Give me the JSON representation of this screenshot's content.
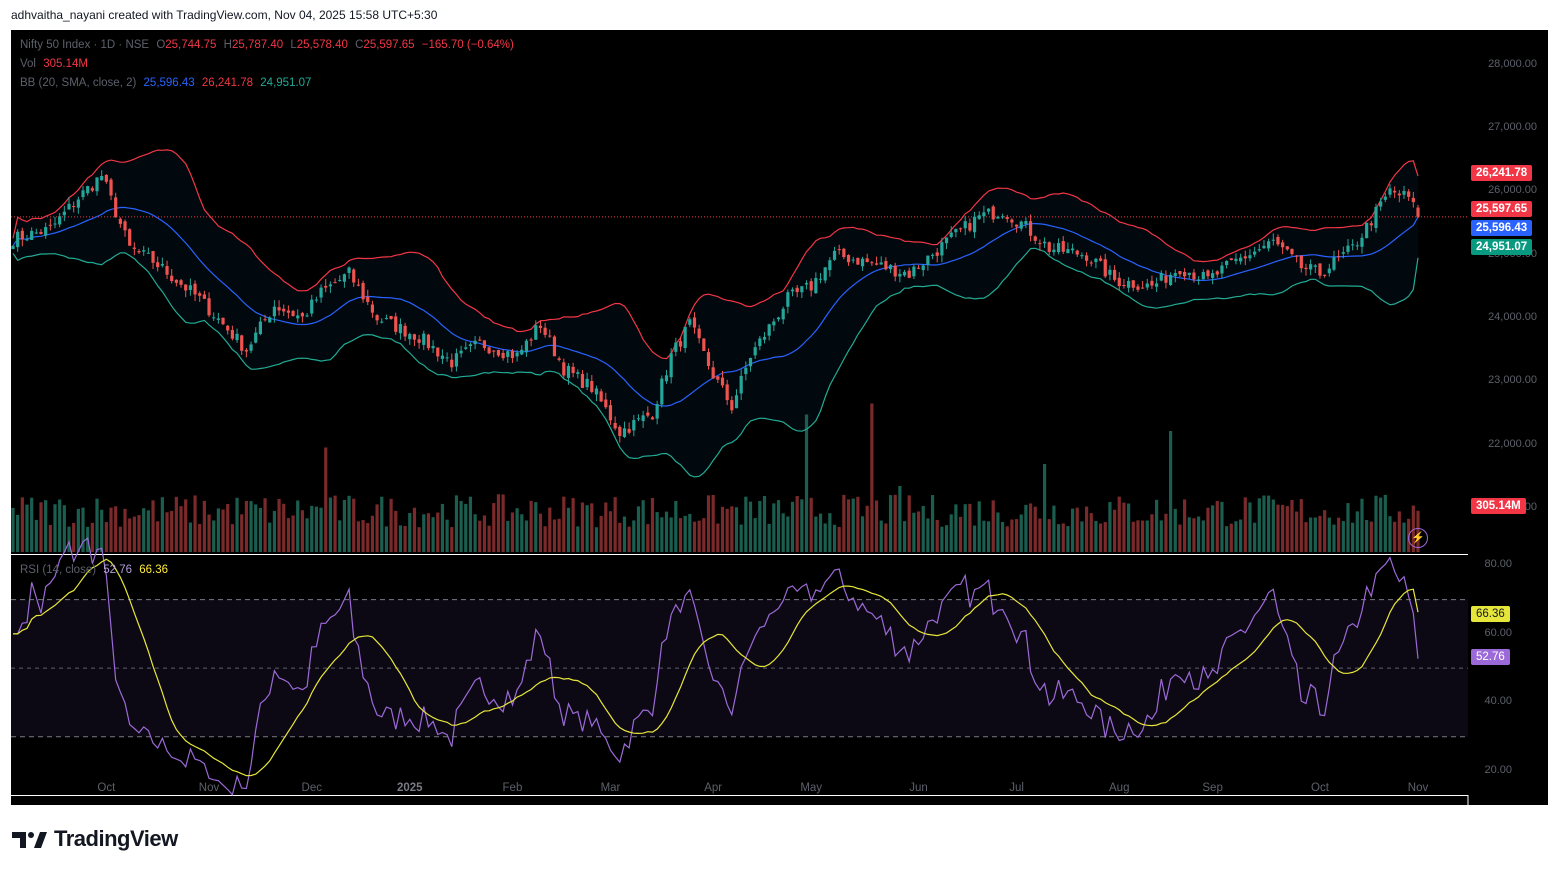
{
  "header": {
    "text": "adhvaitha_nayani created with TradingView.com, Nov 04, 2025 15:58 UTC+5:30"
  },
  "legend": {
    "symbol": "Nifty 50 Index · 1D · NSE",
    "ohlc": {
      "o_label": "O",
      "o": "25,744.75",
      "h_label": "H",
      "h": "25,787.40",
      "l_label": "L",
      "l": "25,578.40",
      "c_label": "C",
      "c": "25,597.65",
      "change": "−165.70 (−0.64%)"
    },
    "vol_label": "Vol",
    "vol": "305.14M",
    "bb_label": "BB (20, SMA, close, 2)",
    "bb_basis": "25,596.43",
    "bb_upper": "26,241.78",
    "bb_lower": "24,951.07",
    "rsi_label": "RSI (14, close)",
    "rsi": "52.76",
    "rsi_ma": "66.36"
  },
  "tags": {
    "upper": "26,241.78",
    "close": "25,597.65",
    "basis": "25,596.43",
    "lower": "24,951.07",
    "vol": "305.14M",
    "rsi_ma": "66.36",
    "rsi": "52.76"
  },
  "colors": {
    "up": "#26a69a",
    "down": "#ef5350",
    "vol_up": "#1b5e4f",
    "vol_down": "#7a2a2a",
    "basis": "#2962ff",
    "upper": "#f23645",
    "lower": "#22ab94",
    "rsi": "#9c6ad8",
    "rsi_ma": "#e6e63a"
  },
  "logo": {
    "text": "TradingView",
    "icon": "tradingview-logo-icon"
  },
  "chart_data": {
    "type": "candlestick",
    "price_axis": {
      "ticks": [
        "28,000.00",
        "27,000.00",
        "26,000.00",
        "25,000.00",
        "24,000.00",
        "23,000.00",
        "22,000.00",
        "21,000.00"
      ],
      "range": [
        20650,
        28550
      ]
    },
    "rsi_axis": {
      "ticks": [
        "80.00",
        "60.00",
        "40.00",
        "20.00"
      ],
      "range": [
        13,
        83
      ],
      "overbought": 70,
      "oversold": 30
    },
    "time_labels": [
      "Oct",
      "Nov",
      "Dec",
      "2025",
      "Feb",
      "Mar",
      "Apr",
      "May",
      "Jun",
      "Jul",
      "Aug",
      "Sep",
      "Oct",
      "Nov"
    ],
    "time_label_idx": [
      20,
      42,
      64,
      85,
      107,
      128,
      150,
      171,
      194,
      215,
      237,
      257,
      280,
      301
    ],
    "bar_count": 302,
    "close_anchors": [
      [
        0,
        25250
      ],
      [
        8,
        25400
      ],
      [
        14,
        25900
      ],
      [
        19,
        26250
      ],
      [
        25,
        25100
      ],
      [
        30,
        24900
      ],
      [
        40,
        24300
      ],
      [
        50,
        23500
      ],
      [
        56,
        24200
      ],
      [
        62,
        24000
      ],
      [
        66,
        24400
      ],
      [
        72,
        24700
      ],
      [
        78,
        24000
      ],
      [
        87,
        23700
      ],
      [
        94,
        23300
      ],
      [
        100,
        23600
      ],
      [
        108,
        23400
      ],
      [
        113,
        23900
      ],
      [
        118,
        23200
      ],
      [
        124,
        22900
      ],
      [
        130,
        22200
      ],
      [
        137,
        22500
      ],
      [
        141,
        23400
      ],
      [
        145,
        23900
      ],
      [
        150,
        23100
      ],
      [
        154,
        22600
      ],
      [
        158,
        23400
      ],
      [
        166,
        24300
      ],
      [
        171,
        24500
      ],
      [
        176,
        25000
      ],
      [
        182,
        24900
      ],
      [
        192,
        24700
      ],
      [
        200,
        25200
      ],
      [
        207,
        25600
      ],
      [
        212,
        25700
      ],
      [
        216,
        25500
      ],
      [
        222,
        25100
      ],
      [
        230,
        25000
      ],
      [
        236,
        24600
      ],
      [
        244,
        24500
      ],
      [
        250,
        24800
      ],
      [
        256,
        24600
      ],
      [
        262,
        24900
      ],
      [
        270,
        25200
      ],
      [
        276,
        24800
      ],
      [
        280,
        24700
      ],
      [
        287,
        25100
      ],
      [
        295,
        26000
      ],
      [
        299,
        25900
      ],
      [
        301,
        25597.65
      ]
    ],
    "volume_spikes": [
      [
        67,
        1.9
      ],
      [
        170,
        2.5
      ],
      [
        184,
        2.7
      ],
      [
        190,
        1.2
      ],
      [
        221,
        1.6
      ],
      [
        248,
        2.2
      ]
    ],
    "last": {
      "open": 25744.75,
      "high": 25787.4,
      "low": 25578.4,
      "close": 25597.65,
      "volume_m": 305.14,
      "bb_basis": 25596.43,
      "bb_upper": 26241.78,
      "bb_lower": 24951.07,
      "rsi": 52.76,
      "rsi_ma": 66.36
    }
  }
}
